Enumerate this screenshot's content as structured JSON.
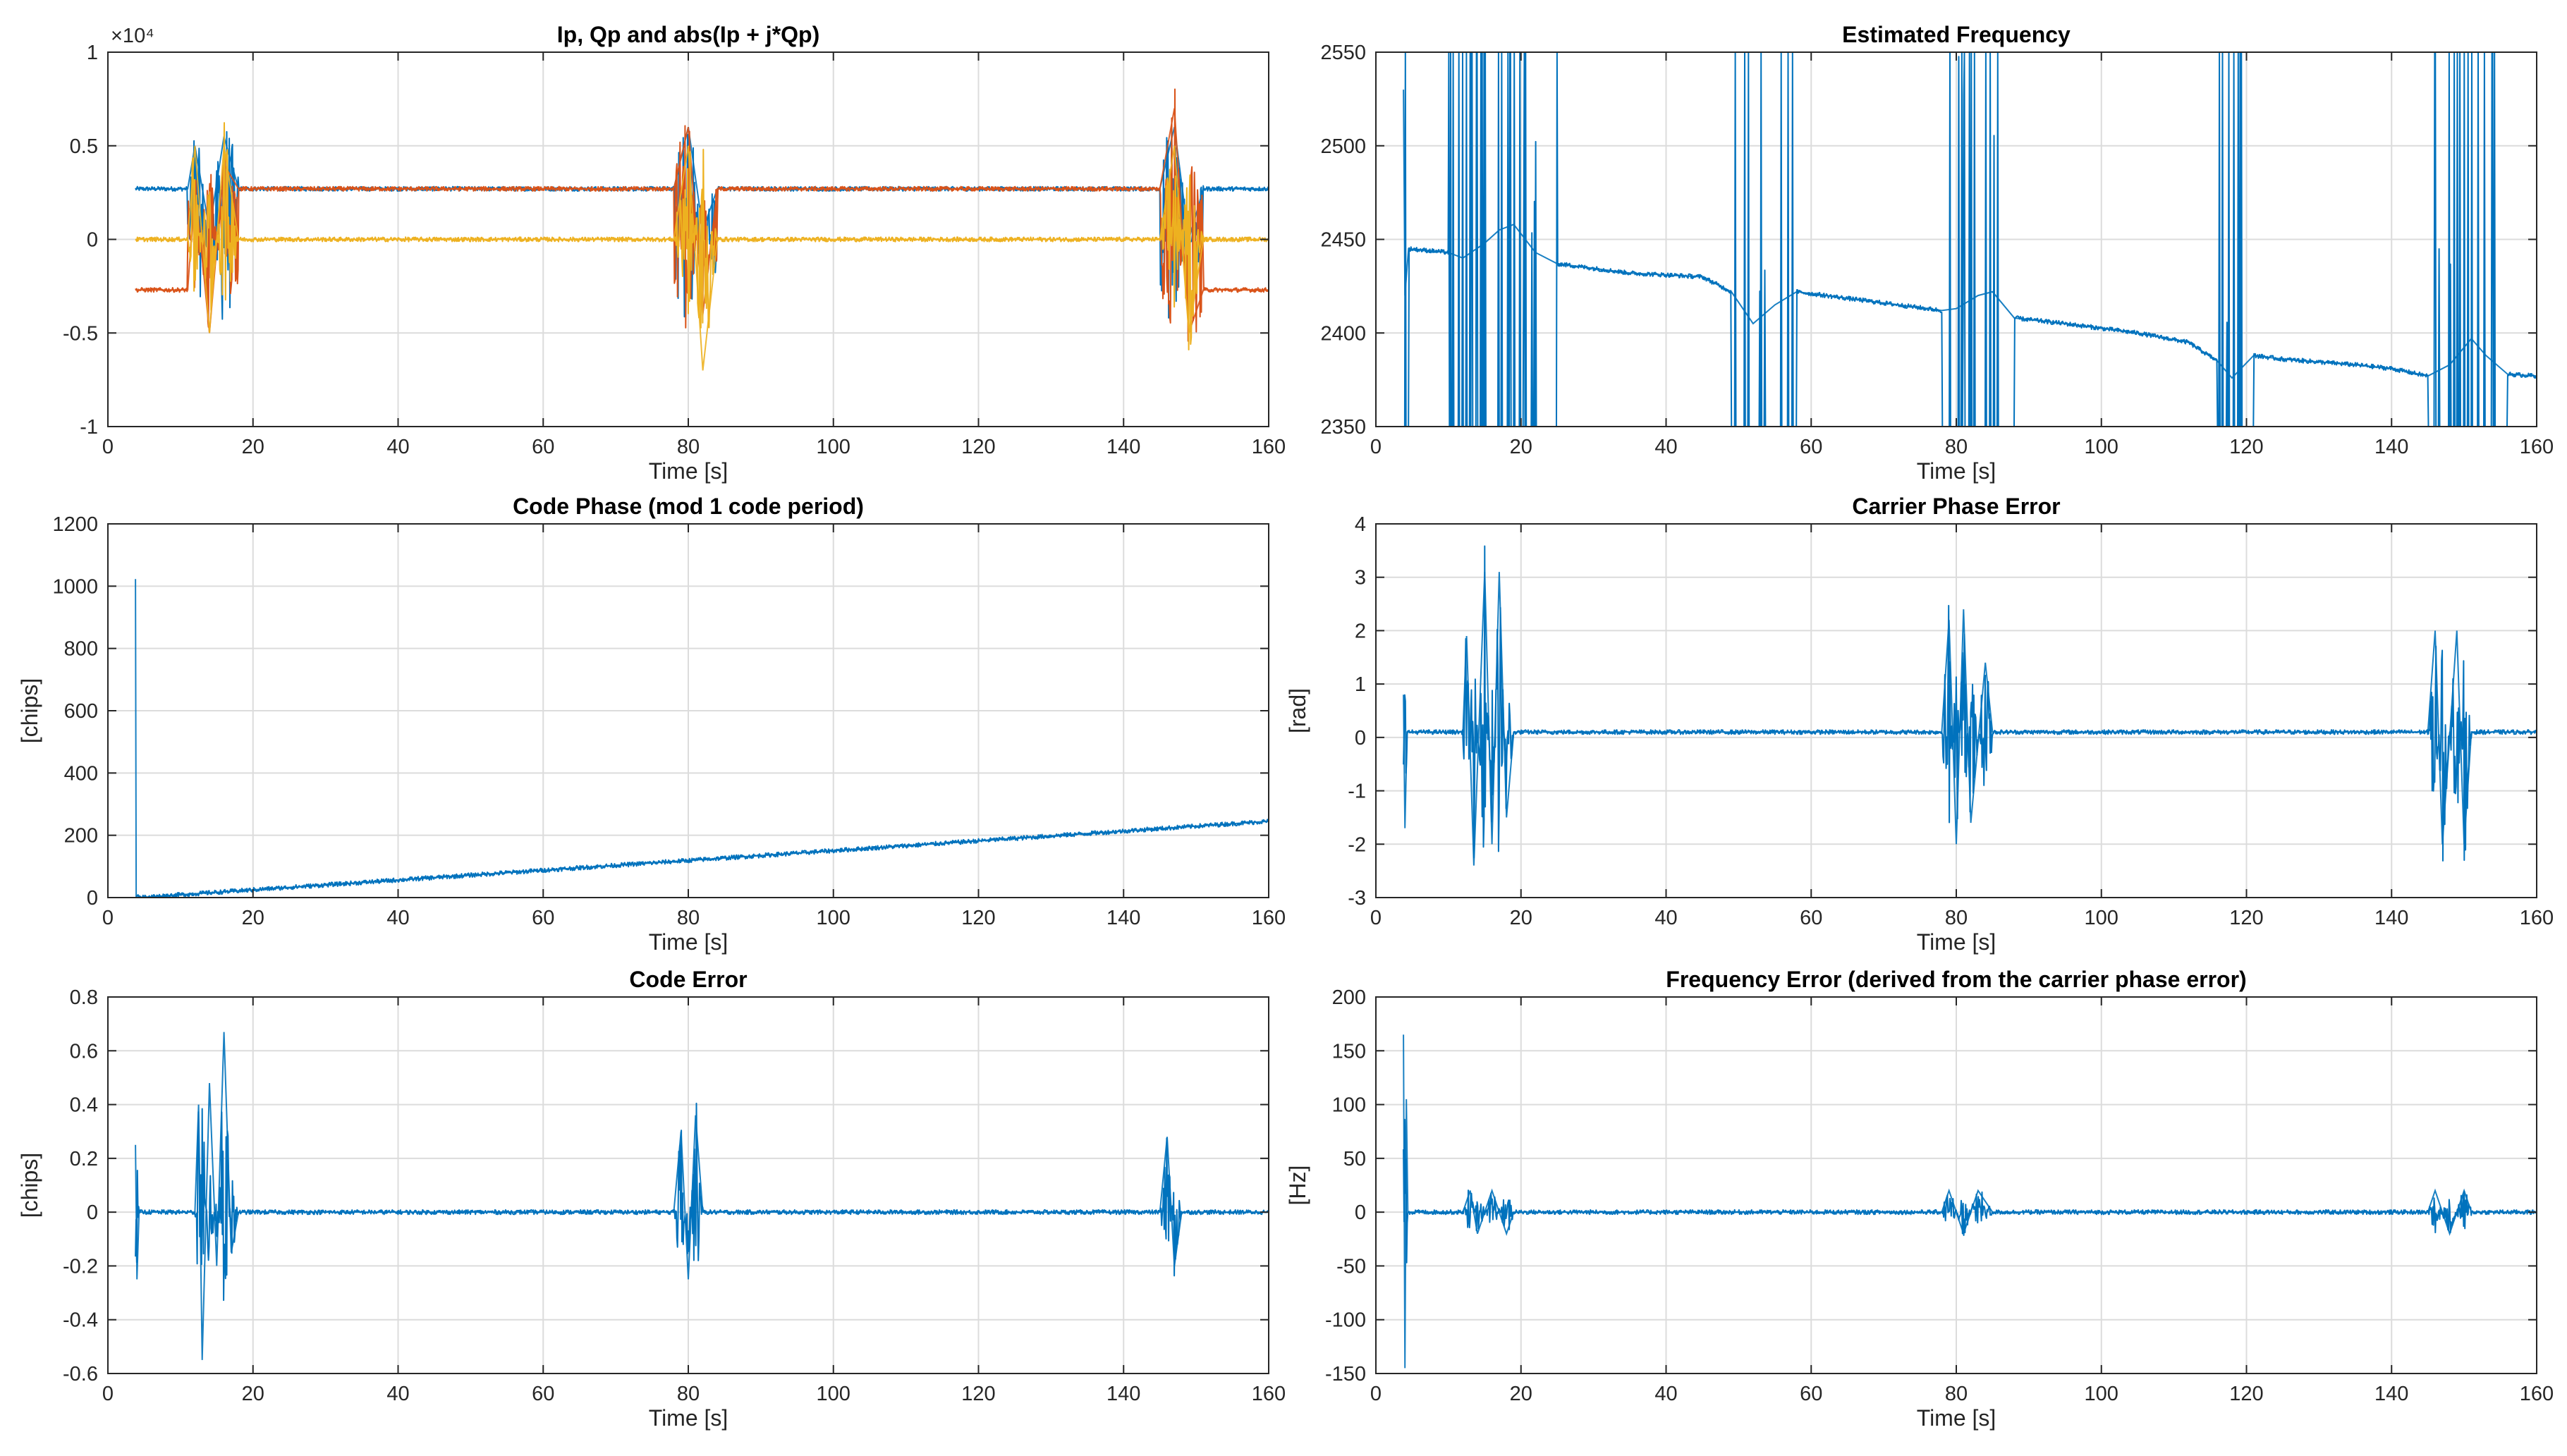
{
  "chart_data": [
    {
      "type": "line",
      "title": "Ip, Qp and abs(Ip + j*Qp)",
      "xlabel": "Time [s]",
      "ylabel": "",
      "xlim": [
        0,
        160
      ],
      "ylim": [
        -1,
        1
      ],
      "xticks": [
        "0",
        "20",
        "40",
        "60",
        "80",
        "100",
        "120",
        "140",
        "160"
      ],
      "yticks": [
        "-1",
        "-0.5",
        "0",
        "0.5",
        "1"
      ],
      "exponent_label": "×10⁴",
      "grid": true,
      "series": [
        {
          "color": "#0072BD",
          "values": [
            [
              3.8,
              0.27
            ],
            [
              11,
              0.27
            ],
            [
              12,
              0.5
            ],
            [
              14,
              0.05
            ],
            [
              16,
              0.55
            ],
            [
              18,
              0.27
            ],
            [
              78,
              0.27
            ],
            [
              80,
              0.6
            ],
            [
              82,
              0.05
            ],
            [
              84,
              0.27
            ],
            [
              145,
              0.27
            ],
            [
              147,
              0.6
            ],
            [
              149,
              0.0
            ],
            [
              151,
              0.27
            ],
            [
              160,
              0.27
            ]
          ]
        },
        {
          "color": "#D95319",
          "values": [
            [
              3.8,
              -0.27
            ],
            [
              11,
              -0.27
            ],
            [
              12,
              0.3
            ],
            [
              14,
              -0.5
            ],
            [
              16,
              0.4
            ],
            [
              18,
              0.27
            ],
            [
              78,
              0.27
            ],
            [
              80,
              0.6
            ],
            [
              82,
              -0.4
            ],
            [
              84,
              0.27
            ],
            [
              145,
              0.27
            ],
            [
              147,
              0.7
            ],
            [
              149,
              -0.5
            ],
            [
              151,
              -0.27
            ],
            [
              160,
              -0.27
            ]
          ]
        },
        {
          "color": "#EDB120",
          "values": [
            [
              3.8,
              0.0
            ],
            [
              11,
              0.0
            ],
            [
              12,
              0.5
            ],
            [
              14,
              -0.5
            ],
            [
              16,
              0.5
            ],
            [
              18,
              0.0
            ],
            [
              78,
              0.0
            ],
            [
              80,
              0.5
            ],
            [
              82,
              -0.7
            ],
            [
              84,
              0.0
            ],
            [
              145,
              0.0
            ],
            [
              147,
              0.5
            ],
            [
              149,
              -0.5
            ],
            [
              151,
              0.0
            ],
            [
              160,
              0.0
            ]
          ]
        }
      ]
    },
    {
      "type": "line",
      "title": "Estimated Frequency",
      "xlabel": "Time [s]",
      "ylabel": "",
      "xlim": [
        0,
        160
      ],
      "ylim": [
        2350,
        2550
      ],
      "xticks": [
        "0",
        "20",
        "40",
        "60",
        "80",
        "100",
        "120",
        "140",
        "160"
      ],
      "yticks": [
        "2350",
        "2400",
        "2450",
        "2500",
        "2550"
      ],
      "grid": true,
      "series": [
        {
          "color": "#0072BD",
          "values": [
            [
              3.8,
              2530
            ],
            [
              4,
              2420
            ],
            [
              4.5,
              2445
            ],
            [
              10,
              2443
            ],
            [
              12,
              2440
            ],
            [
              15,
              2448
            ],
            [
              17,
              2455
            ],
            [
              19,
              2458
            ],
            [
              22,
              2443
            ],
            [
              25,
              2437
            ],
            [
              35,
              2432
            ],
            [
              45,
              2430
            ],
            [
              49,
              2422
            ],
            [
              52,
              2405
            ],
            [
              55,
              2415
            ],
            [
              58,
              2422
            ],
            [
              70,
              2416
            ],
            [
              78,
              2412
            ],
            [
              80,
              2413
            ],
            [
              83,
              2420
            ],
            [
              85,
              2422
            ],
            [
              88,
              2408
            ],
            [
              95,
              2405
            ],
            [
              105,
              2400
            ],
            [
              112,
              2395
            ],
            [
              116,
              2385
            ],
            [
              118,
              2376
            ],
            [
              121,
              2388
            ],
            [
              125,
              2386
            ],
            [
              135,
              2383
            ],
            [
              140,
              2381
            ],
            [
              145,
              2377
            ],
            [
              148,
              2383
            ],
            [
              151,
              2397
            ],
            [
              153,
              2388
            ],
            [
              156,
              2378
            ],
            [
              160,
              2377
            ]
          ]
        }
      ]
    },
    {
      "type": "line",
      "title": "Code Phase (mod 1 code period)",
      "xlabel": "Time [s]",
      "ylabel": "[chips]",
      "xlim": [
        0,
        160
      ],
      "ylim": [
        0,
        1200
      ],
      "xticks": [
        "0",
        "20",
        "40",
        "60",
        "80",
        "100",
        "120",
        "140",
        "160"
      ],
      "yticks": [
        "0",
        "200",
        "400",
        "600",
        "800",
        "1000",
        "1200"
      ],
      "grid": true,
      "series": [
        {
          "color": "#0072BD",
          "values": [
            [
              3.8,
              1023
            ],
            [
              3.9,
              0
            ],
            [
              4.2,
              0
            ],
            [
              160,
              245
            ]
          ]
        }
      ]
    },
    {
      "type": "line",
      "title": "Carrier Phase Error",
      "xlabel": "Time [s]",
      "ylabel": "[rad]",
      "xlim": [
        0,
        160
      ],
      "ylim": [
        -3,
        4
      ],
      "xticks": [
        "0",
        "20",
        "40",
        "60",
        "80",
        "100",
        "120",
        "140",
        "160"
      ],
      "yticks": [
        "-3",
        "-2",
        "-1",
        "0",
        "1",
        "2",
        "3",
        "4"
      ],
      "grid": true,
      "series": [
        {
          "color": "#0072BD",
          "values": [
            [
              3.8,
              0.8
            ],
            [
              4,
              -1.7
            ],
            [
              4.3,
              0.1
            ],
            [
              12,
              0.1
            ],
            [
              12.5,
              1.9
            ],
            [
              13.5,
              -2.4
            ],
            [
              15,
              3.1
            ],
            [
              16,
              -2.0
            ],
            [
              17,
              3.1
            ],
            [
              18,
              -1.5
            ],
            [
              19,
              0.1
            ],
            [
              78,
              0.1
            ],
            [
              79,
              2.2
            ],
            [
              80,
              -2.0
            ],
            [
              81,
              2.4
            ],
            [
              82,
              -1.6
            ],
            [
              84,
              1.4
            ],
            [
              85,
              0.1
            ],
            [
              145,
              0.1
            ],
            [
              146,
              2.0
            ],
            [
              147,
              -2.0
            ],
            [
              149,
              2.0
            ],
            [
              150,
              -2.0
            ],
            [
              151,
              0.1
            ],
            [
              160,
              0.1
            ]
          ]
        }
      ]
    },
    {
      "type": "line",
      "title": "Code Error",
      "xlabel": "Time [s]",
      "ylabel": "[chips]",
      "xlim": [
        0,
        160
      ],
      "ylim": [
        -0.6,
        0.8
      ],
      "xticks": [
        "0",
        "20",
        "40",
        "60",
        "80",
        "100",
        "120",
        "140",
        "160"
      ],
      "yticks": [
        "-0.6",
        "-0.4",
        "-0.2",
        "0",
        "0.2",
        "0.4",
        "0.6",
        "0.8"
      ],
      "grid": true,
      "series": [
        {
          "color": "#0072BD",
          "values": [
            [
              3.8,
              0.25
            ],
            [
              4,
              -0.25
            ],
            [
              4.3,
              0.0
            ],
            [
              12,
              0.0
            ],
            [
              12.5,
              0.4
            ],
            [
              13,
              -0.55
            ],
            [
              14,
              0.48
            ],
            [
              15,
              -0.2
            ],
            [
              16,
              0.67
            ],
            [
              17,
              -0.15
            ],
            [
              18,
              0.0
            ],
            [
              78,
              0.0
            ],
            [
              79,
              0.3
            ],
            [
              80,
              -0.25
            ],
            [
              81,
              0.36
            ],
            [
              82,
              0.0
            ],
            [
              145,
              0.0
            ],
            [
              146,
              0.28
            ],
            [
              147,
              -0.2
            ],
            [
              148,
              0.0
            ],
            [
              160,
              0.0
            ]
          ]
        }
      ]
    },
    {
      "type": "line",
      "title": "Frequency Error (derived from the carrier phase error)",
      "xlabel": "Time [s]",
      "ylabel": "[Hz]",
      "xlim": [
        0,
        160
      ],
      "ylim": [
        -150,
        200
      ],
      "xticks": [
        "0",
        "20",
        "40",
        "60",
        "80",
        "100",
        "120",
        "140",
        "160"
      ],
      "yticks": [
        "-150",
        "-100",
        "-50",
        "0",
        "50",
        "100",
        "150",
        "200"
      ],
      "grid": true,
      "series": [
        {
          "color": "#0072BD",
          "values": [
            [
              3.8,
              165
            ],
            [
              4,
              -145
            ],
            [
              4.2,
              105
            ],
            [
              4.4,
              0
            ],
            [
              12,
              0
            ],
            [
              13,
              20
            ],
            [
              14,
              -20
            ],
            [
              16,
              20
            ],
            [
              18,
              -20
            ],
            [
              19,
              0
            ],
            [
              78,
              0
            ],
            [
              79,
              20
            ],
            [
              81,
              -20
            ],
            [
              83,
              20
            ],
            [
              85,
              0
            ],
            [
              145,
              0
            ],
            [
              146,
              20
            ],
            [
              148,
              -20
            ],
            [
              150,
              20
            ],
            [
              151,
              0
            ],
            [
              160,
              0
            ]
          ]
        }
      ]
    }
  ]
}
